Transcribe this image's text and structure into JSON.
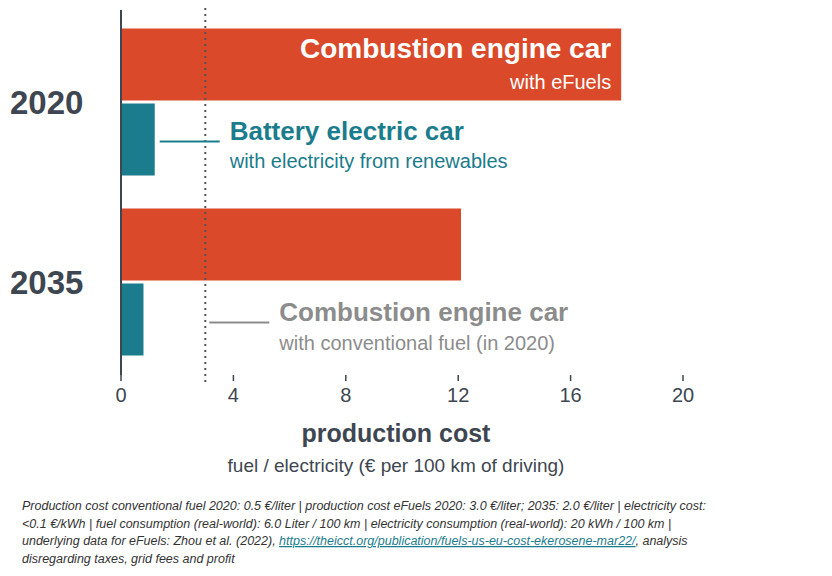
{
  "chart_data": {
    "type": "bar",
    "orientation": "horizontal",
    "categories": [
      "2020",
      "2035"
    ],
    "series": [
      {
        "name": "Combustion engine car",
        "description": "with eFuels",
        "color": "#d9492a",
        "values": [
          17.8,
          12.1
        ]
      },
      {
        "name": "Battery electric car",
        "description": "with electricity from renewables",
        "color": "#1a7c8c",
        "values": [
          1.2,
          0.8
        ]
      }
    ],
    "reference_lines": [
      {
        "value": 3,
        "name": "Combustion engine car",
        "description": "with conventional fuel (in 2020)",
        "color": "#8c8c8c",
        "line_style": "dotted"
      }
    ],
    "xlim": [
      0,
      20
    ],
    "xticks": [
      0,
      4,
      8,
      12,
      16,
      20
    ],
    "xlabel": "production cost",
    "xlabel_subtitle": "fuel / electricity (€ per 100 km of driving)",
    "grid": false,
    "footnote": [
      [
        {
          "text": "Production cost conventional fuel 2020: 0.5 €/liter | production cost eFuels 2020: 3.0 €/liter; 2035: 2.0 €/liter | electricity cost:",
          "link": false
        }
      ],
      [
        {
          "text": "<0.1 €/kWh | fuel consumption (real-world): 6.0 Liter / 100 km | electricity consumption (real-world): 20 kWh / 100 km |",
          "link": false
        }
      ],
      [
        {
          "text": "underlying data for eFuels: Zhou et al. (2022), ",
          "link": false
        },
        {
          "text": "https://theicct.org/publication/fuels-us-eu-cost-ekerosene-mar22/",
          "link": true
        },
        {
          "text": ", analysis",
          "link": false
        }
      ],
      [
        {
          "text": "disregarding taxes, grid fees and profit",
          "link": false
        }
      ]
    ]
  }
}
